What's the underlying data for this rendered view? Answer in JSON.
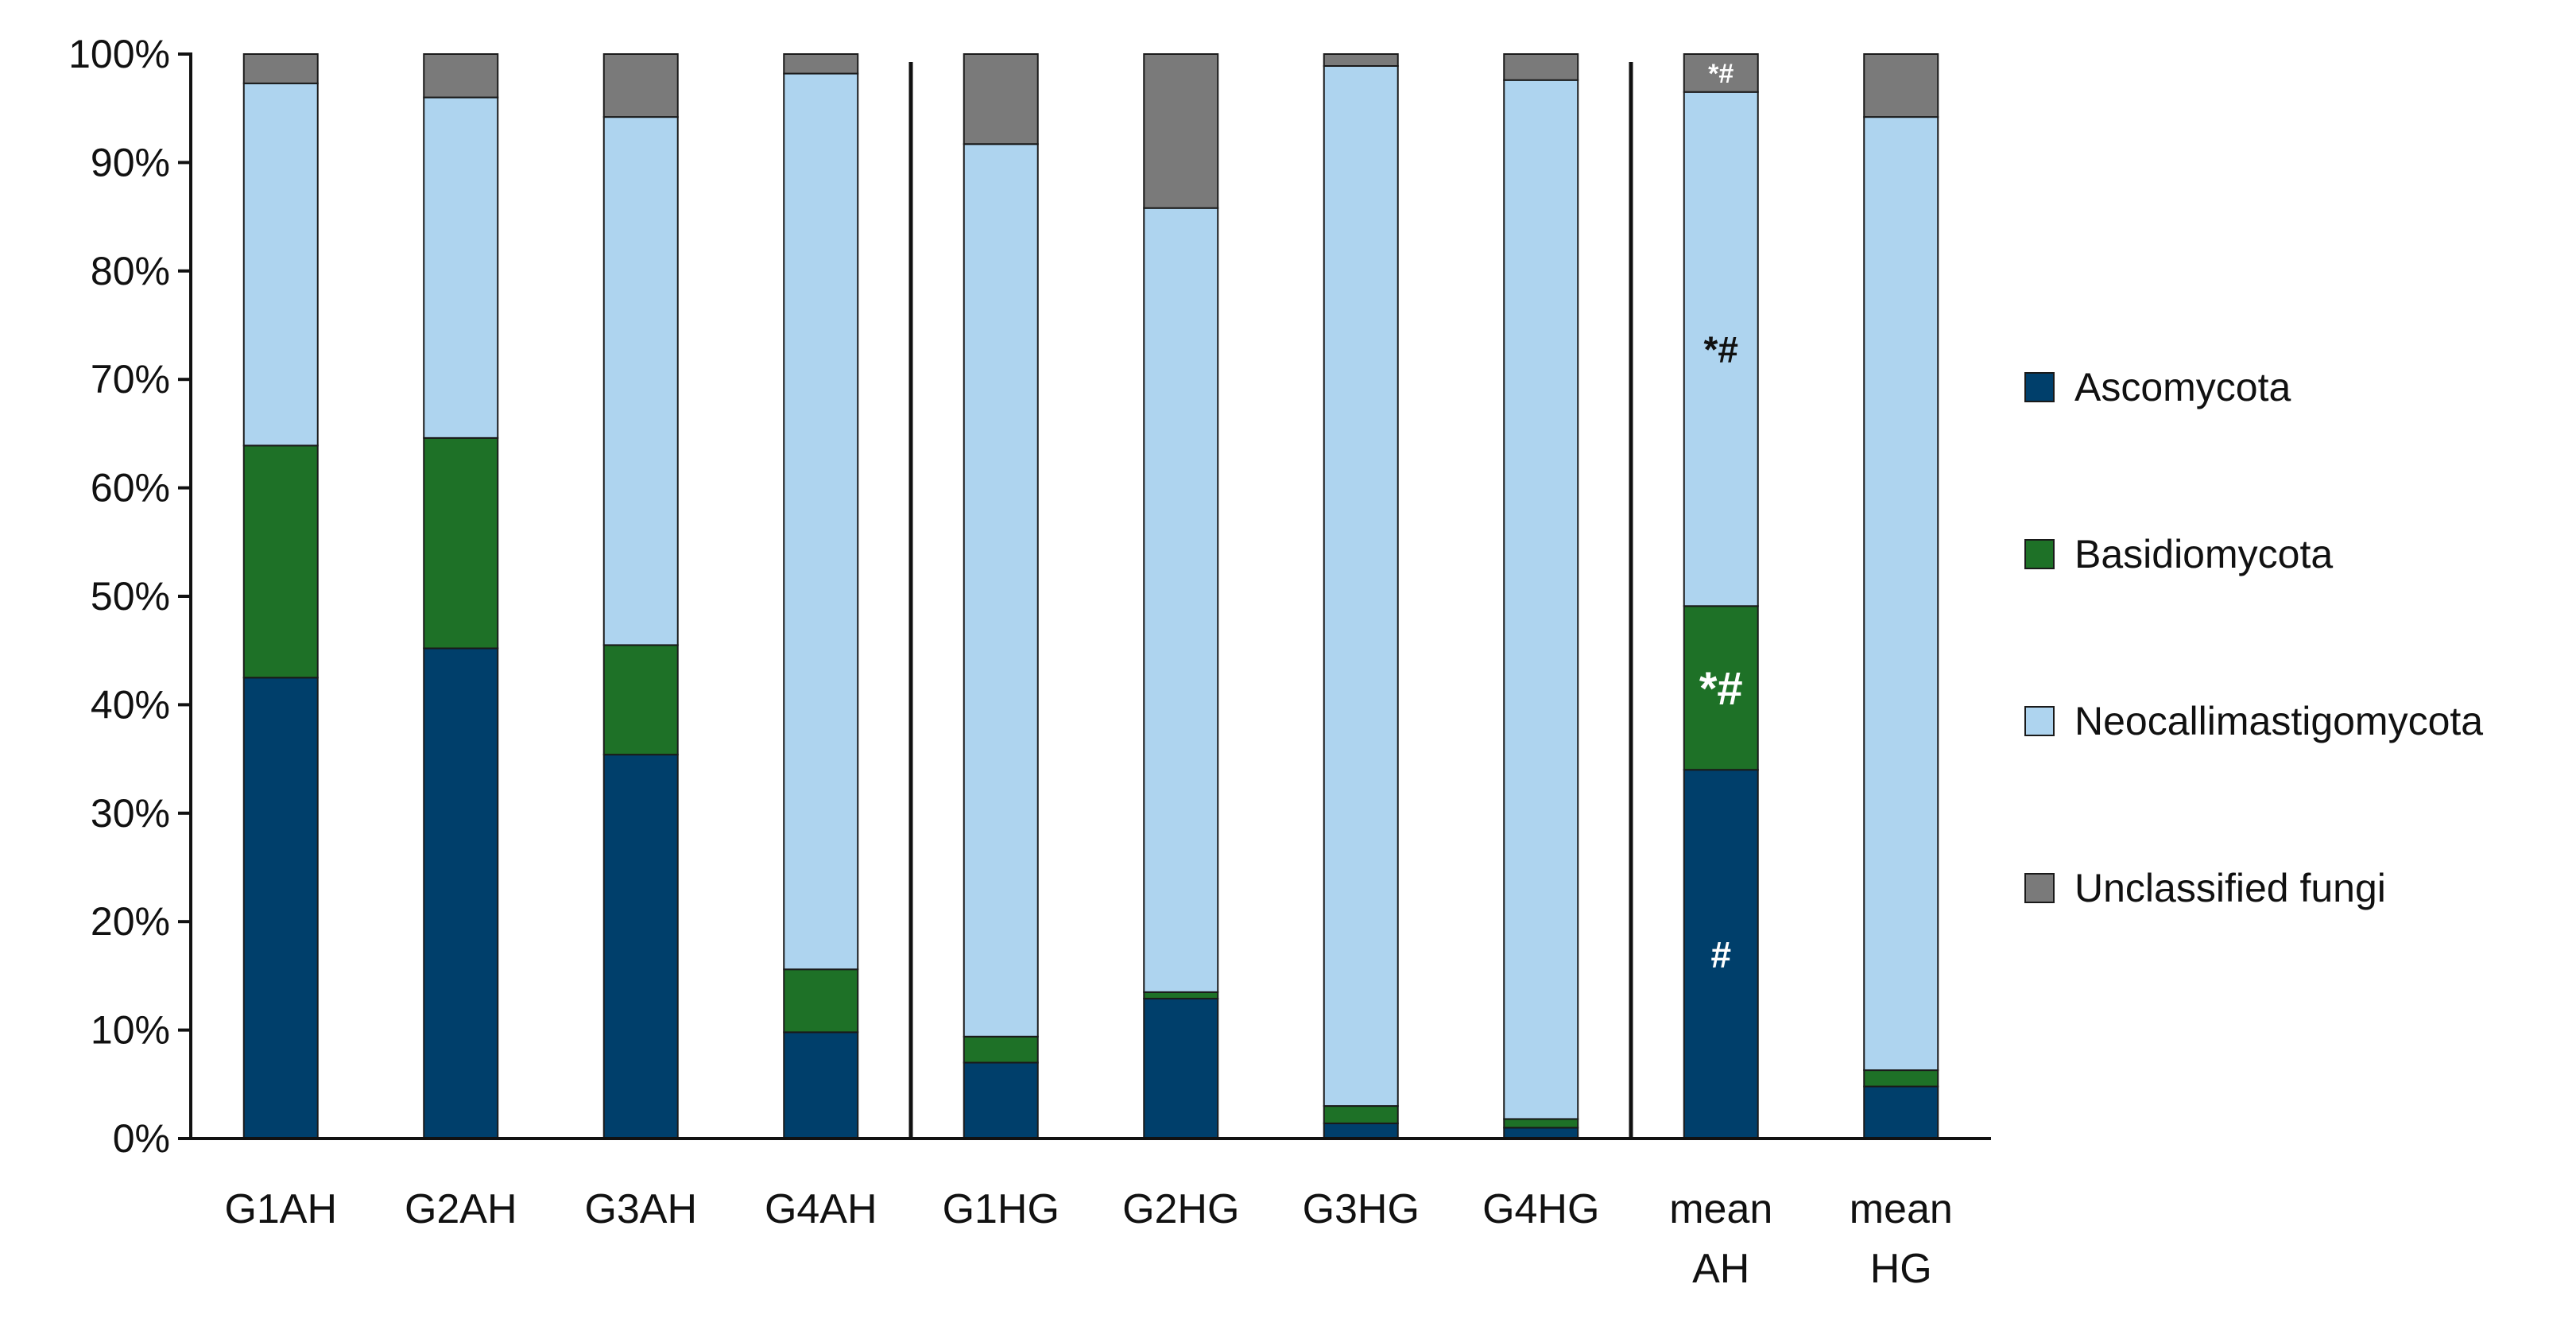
{
  "chart_data": {
    "type": "bar",
    "stacked": true,
    "title": "",
    "xlabel": "",
    "ylabel": "",
    "ylim": [
      0,
      100
    ],
    "y_ticks": [
      "0%",
      "10%",
      "20%",
      "30%",
      "40%",
      "50%",
      "60%",
      "70%",
      "80%",
      "90%",
      "100%"
    ],
    "categories": [
      [
        "G1AH"
      ],
      [
        "G2AH"
      ],
      [
        "G3AH"
      ],
      [
        "G4AH"
      ],
      [
        "G1HG"
      ],
      [
        "G2HG"
      ],
      [
        "G3HG"
      ],
      [
        "G4HG"
      ],
      [
        "mean",
        "AH"
      ],
      [
        "mean",
        "HG"
      ]
    ],
    "group_separators_after": [
      3,
      7
    ],
    "series": [
      {
        "name": "Ascomycota",
        "color": "#003f6b",
        "values": [
          42.5,
          45.2,
          35.4,
          9.8,
          7.0,
          12.9,
          1.4,
          1.0,
          34.0,
          4.8
        ]
      },
      {
        "name": "Basidiomycota",
        "color": "#1e7127",
        "values": [
          21.4,
          19.4,
          10.1,
          5.8,
          2.4,
          0.6,
          1.6,
          0.8,
          15.1,
          1.5
        ]
      },
      {
        "name": "Neocallimastigomycota",
        "color": "#aed4ef",
        "values": [
          33.4,
          31.4,
          48.7,
          82.6,
          82.3,
          72.3,
          95.9,
          95.8,
          47.4,
          87.9
        ]
      },
      {
        "name": "Unclassified fungi",
        "color": "#7a7a7a",
        "values": [
          2.7,
          4.0,
          5.8,
          1.8,
          8.3,
          14.2,
          1.1,
          2.4,
          3.5,
          5.8
        ]
      }
    ],
    "legend_position": "right",
    "annotations": [
      {
        "bar": 8,
        "series": 0,
        "text": "#",
        "color": "#ffffff"
      },
      {
        "bar": 8,
        "series": 1,
        "text": "*#",
        "color": "#ffffff"
      },
      {
        "bar": 8,
        "series": 2,
        "text": "*#",
        "color": "#111111"
      },
      {
        "bar": 8,
        "series": 3,
        "text": "*#",
        "color": "#ffffff"
      }
    ]
  }
}
